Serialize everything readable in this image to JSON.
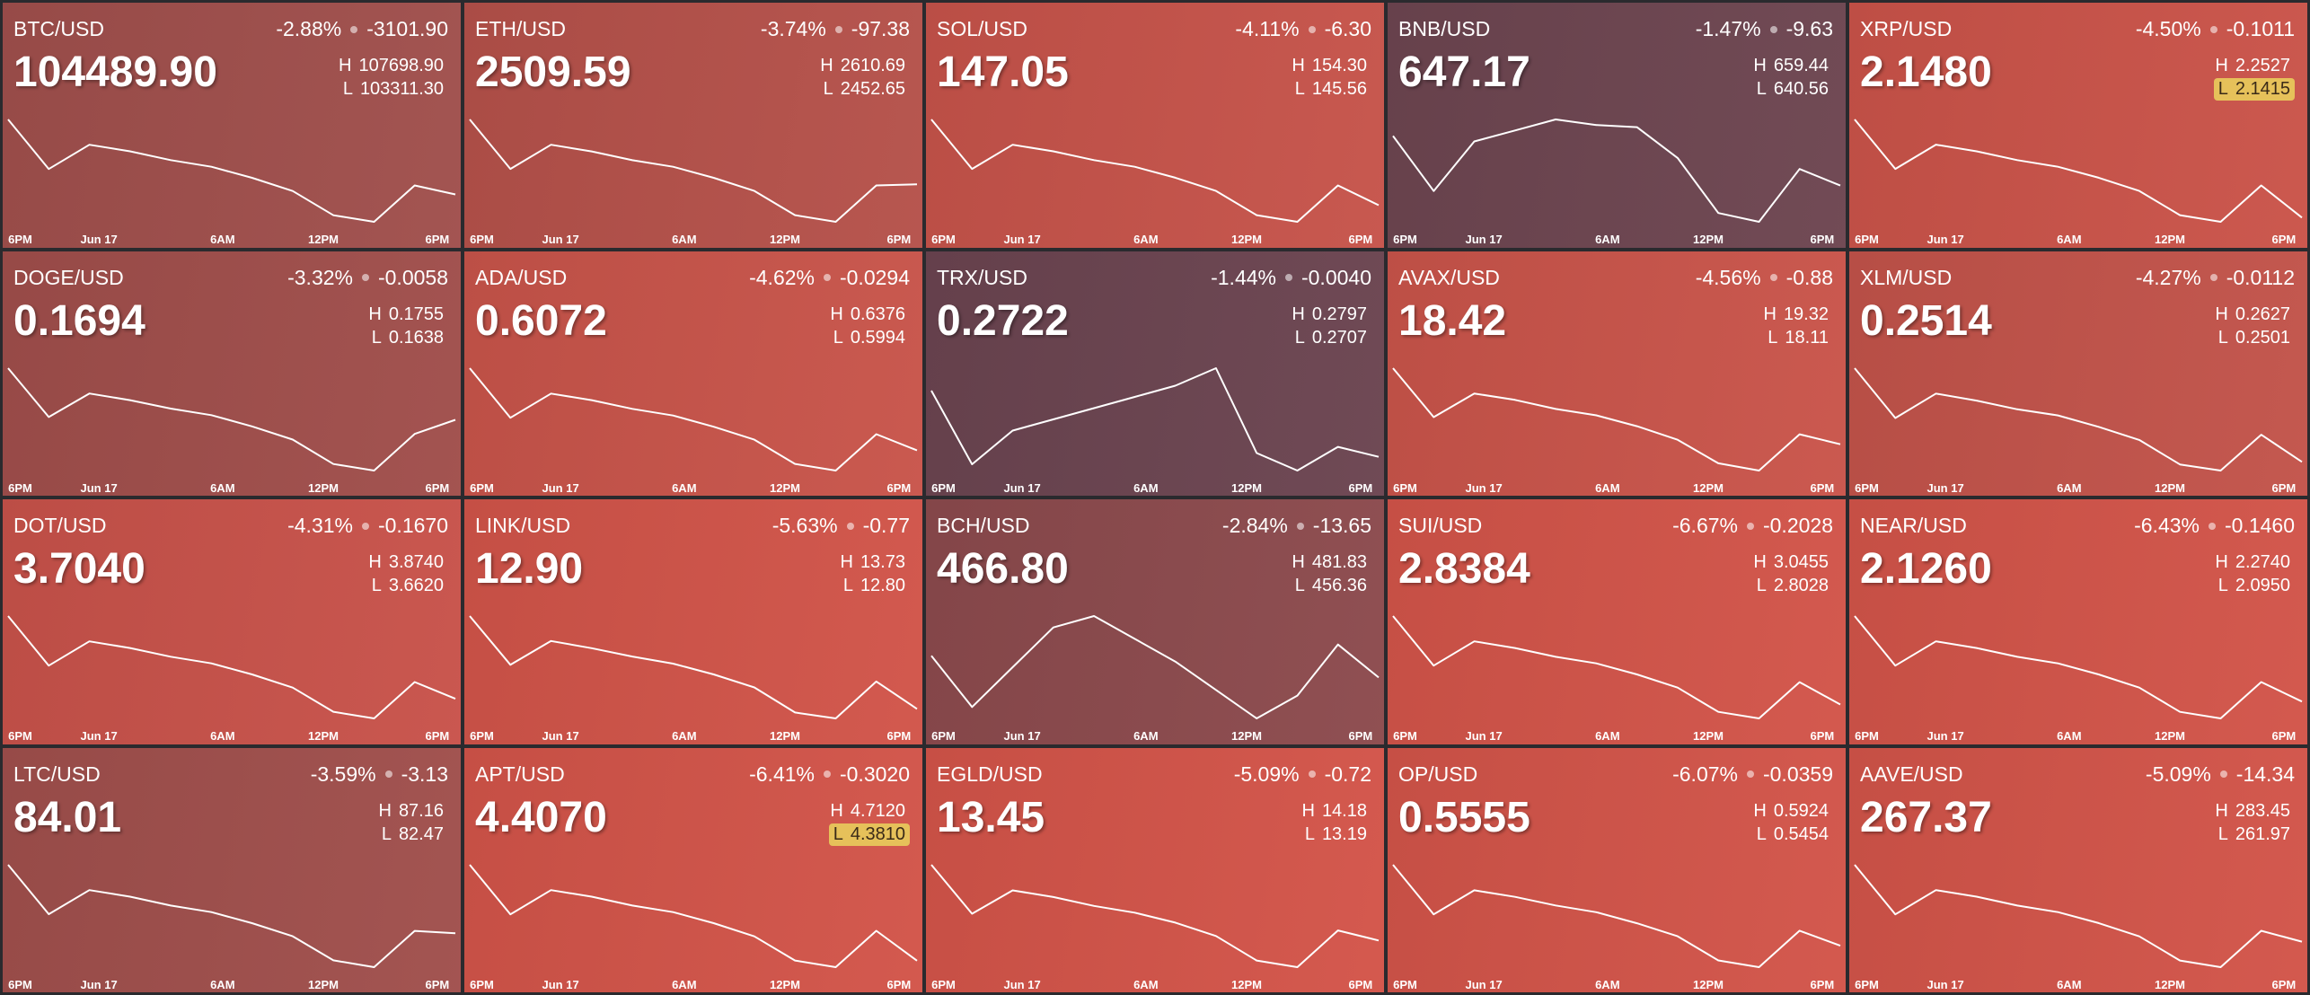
{
  "time_labels": [
    "6PM",
    "Jun 17",
    "6AM",
    "12PM",
    "6PM"
  ],
  "high_label": "H",
  "low_label": "L",
  "tiles": [
    {
      "pair": "BTC/USD",
      "change_pct": "-2.88%",
      "change": "-3101.90",
      "price": "104489.90",
      "high": "107698.90",
      "low": "103311.30",
      "color": "#a04f4c",
      "sparkline": [
        107479,
        105505,
        106470,
        106207,
        105856,
        105593,
        105154,
        104628,
        103662,
        103399,
        104847,
        104489.9
      ]
    },
    {
      "pair": "ETH/USD",
      "change_pct": "-3.74%",
      "change": "-97.38",
      "price": "2509.59",
      "high": "2610.69",
      "low": "2452.65",
      "color": "#b5514a",
      "sparkline": [
        2602.8,
        2531.7,
        2566.4,
        2556.9,
        2544.3,
        2534.8,
        2519.0,
        2500.1,
        2465.3,
        2455.8,
        2508.0,
        2509.59
      ]
    },
    {
      "pair": "SOL/USD",
      "change_pct": "-4.11%",
      "change": "-6.30",
      "price": "147.05",
      "high": "154.30",
      "low": "145.56",
      "color": "#c6534a",
      "sparkline": [
        153.86,
        149.93,
        151.85,
        151.33,
        150.63,
        150.1,
        149.23,
        148.18,
        146.26,
        145.73,
        148.62,
        147.05
      ]
    },
    {
      "pair": "BNB/USD",
      "change_pct": "-1.47%",
      "change": "-9.63",
      "price": "647.17",
      "high": "659.44",
      "low": "640.56",
      "color": "#6d4550",
      "sparkline": [
        655.66,
        646.22,
        654.72,
        656.61,
        658.5,
        657.55,
        657.17,
        651.89,
        642.45,
        640.94,
        650.0,
        647.17
      ]
    },
    {
      "pair": "XRP/USD",
      "change_pct": "-4.50%",
      "change": "-0.1011",
      "price": "2.1480",
      "high": "2.2527",
      "low": "2.1415",
      "color": "#ca5349",
      "low_highlight": true,
      "sparkline": [
        2.2471,
        2.1971,
        2.2216,
        2.2149,
        2.206,
        2.1993,
        2.1882,
        2.1749,
        2.1504,
        2.1437,
        2.1804,
        2.148
      ]
    },
    {
      "pair": "DOGE/USD",
      "change_pct": "-3.32%",
      "change": "-0.0058",
      "price": "0.1694",
      "high": "0.1755",
      "low": "0.1638",
      "color": "#a04e4b",
      "sparkline": [
        0.1749,
        0.1697,
        0.1722,
        0.1715,
        0.1706,
        0.1699,
        0.1687,
        0.1673,
        0.1647,
        0.164,
        0.1679,
        0.1694
      ]
    },
    {
      "pair": "ADA/USD",
      "change_pct": "-4.62%",
      "change": "-0.0294",
      "price": "0.6072",
      "high": "0.6376",
      "low": "0.5994",
      "color": "#c8544a",
      "sparkline": [
        0.6357,
        0.6185,
        0.6269,
        0.6246,
        0.6216,
        0.6193,
        0.6154,
        0.6109,
        0.6025,
        0.6002,
        0.6128,
        0.6072
      ]
    },
    {
      "pair": "TRX/USD",
      "change_pct": "-1.44%",
      "change": "-0.0040",
      "price": "0.2722",
      "high": "0.2797",
      "low": "0.2707",
      "color": "#6b4450",
      "sparkline": [
        0.2775,
        0.2716,
        0.2743,
        0.2752,
        0.2761,
        0.277,
        0.2779,
        0.2793,
        0.2725,
        0.2711,
        0.273,
        0.2722
      ]
    },
    {
      "pair": "AVAX/USD",
      "change_pct": "-4.56%",
      "change": "-0.88",
      "price": "18.42",
      "high": "19.32",
      "low": "18.11",
      "color": "#c9544a",
      "sparkline": [
        19.26,
        18.72,
        18.98,
        18.91,
        18.81,
        18.74,
        18.62,
        18.47,
        18.21,
        18.13,
        18.53,
        18.42
      ]
    },
    {
      "pair": "XLM/USD",
      "change_pct": "-4.27%",
      "change": "-0.0112",
      "price": "0.2514",
      "high": "0.2627",
      "low": "0.2501",
      "color": "#c2534a",
      "sparkline": [
        0.2621,
        0.2564,
        0.2592,
        0.2584,
        0.2574,
        0.2567,
        0.2554,
        0.2539,
        0.2511,
        0.2504,
        0.2545,
        0.2514
      ]
    },
    {
      "pair": "DOT/USD",
      "change_pct": "-4.31%",
      "change": "-0.1670",
      "price": "3.7040",
      "high": "3.8740",
      "low": "3.6620",
      "color": "#c8524a",
      "sparkline": [
        3.8634,
        3.768,
        3.8146,
        3.8019,
        3.785,
        3.7722,
        3.751,
        3.7256,
        3.679,
        3.6662,
        3.7362,
        3.704
      ]
    },
    {
      "pair": "LINK/USD",
      "change_pct": "-5.63%",
      "change": "-0.77",
      "price": "12.90",
      "high": "13.73",
      "low": "12.80",
      "color": "#d15449",
      "sparkline": [
        13.68,
        13.27,
        13.47,
        13.41,
        13.34,
        13.28,
        13.19,
        13.08,
        12.87,
        12.82,
        13.13,
        12.9
      ]
    },
    {
      "pair": "BCH/USD",
      "change_pct": "-2.84%",
      "change": "-13.65",
      "price": "466.80",
      "high": "481.83",
      "low": "456.36",
      "color": "#8c4a4d",
      "sparkline": [
        471.64,
        460.18,
        469.1,
        478.01,
        480.56,
        475.46,
        470.37,
        464.0,
        457.63,
        462.73,
        474.19,
        466.8
      ]
    },
    {
      "pair": "SUI/USD",
      "change_pct": "-6.67%",
      "change": "-0.2028",
      "price": "2.8384",
      "high": "3.0455",
      "low": "2.8028",
      "color": "#d25449",
      "sparkline": [
        3.0334,
        2.9242,
        2.9775,
        2.963,
        2.9436,
        2.929,
        2.9047,
        2.8756,
        2.8222,
        2.8077,
        2.8877,
        2.8384
      ]
    },
    {
      "pair": "NEAR/USD",
      "change_pct": "-6.43%",
      "change": "-0.1460",
      "price": "2.1260",
      "high": "2.2740",
      "low": "2.0950",
      "color": "#d25449",
      "sparkline": [
        2.2651,
        2.1845,
        2.2239,
        2.2131,
        2.1988,
        2.1881,
        2.1702,
        2.1487,
        2.1093,
        2.0986,
        2.1577,
        2.126
      ]
    },
    {
      "pair": "LTC/USD",
      "change_pct": "-3.59%",
      "change": "-3.13",
      "price": "84.01",
      "high": "87.16",
      "low": "82.47",
      "color": "#a04f4c",
      "sparkline": [
        86.93,
        84.82,
        85.85,
        85.57,
        85.19,
        84.91,
        84.44,
        83.88,
        82.85,
        82.56,
        84.11,
        84.01
      ]
    },
    {
      "pair": "APT/USD",
      "change_pct": "-6.41%",
      "change": "-0.3020",
      "price": "4.4070",
      "high": "4.7120",
      "low": "4.3810",
      "color": "#d25449",
      "low_highlight": true,
      "sparkline": [
        4.6955,
        4.5465,
        4.6193,
        4.5995,
        4.573,
        4.5531,
        4.52,
        4.4803,
        4.4075,
        4.3876,
        4.4969,
        4.407
      ]
    },
    {
      "pair": "EGLD/USD",
      "change_pct": "-5.09%",
      "change": "-0.72",
      "price": "13.45",
      "high": "14.18",
      "low": "13.19",
      "color": "#d35449",
      "sparkline": [
        14.13,
        13.69,
        13.9,
        13.84,
        13.76,
        13.7,
        13.61,
        13.49,
        13.27,
        13.21,
        13.54,
        13.45
      ]
    },
    {
      "pair": "OP/USD",
      "change_pct": "-6.07%",
      "change": "-0.0359",
      "price": "0.5555",
      "high": "0.5924",
      "low": "0.5454",
      "color": "#d25449",
      "sparkline": [
        0.5901,
        0.5689,
        0.5792,
        0.5764,
        0.5727,
        0.5698,
        0.5651,
        0.5595,
        0.5492,
        0.5463,
        0.5619,
        0.5555
      ]
    },
    {
      "pair": "AAVE/USD",
      "change_pct": "-5.09%",
      "change": "-14.34",
      "price": "267.37",
      "high": "283.45",
      "low": "261.97",
      "color": "#d25449",
      "sparkline": [
        282.38,
        272.71,
        277.44,
        276.15,
        274.43,
        273.14,
        271.01,
        268.41,
        263.69,
        262.4,
        269.49,
        267.37
      ]
    }
  ]
}
